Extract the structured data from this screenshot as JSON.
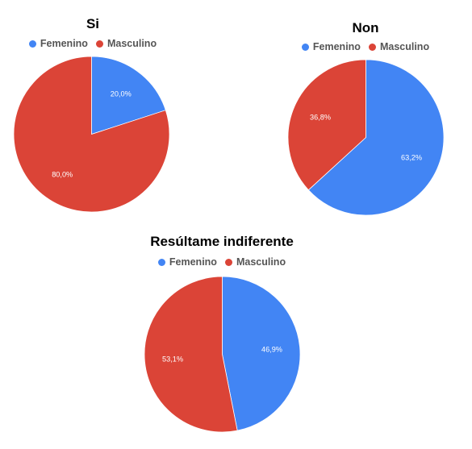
{
  "colors": {
    "femenino": "#4285f4",
    "masculino": "#db4437"
  },
  "chart_data": [
    {
      "type": "pie",
      "title": "Si",
      "legend": [
        "Femenino",
        "Masculino"
      ],
      "legend_position": "top",
      "slices": [
        {
          "label": "Femenino",
          "value": 20.0,
          "display": "20,0%"
        },
        {
          "label": "Masculino",
          "value": 80.0,
          "display": "80,0%"
        }
      ]
    },
    {
      "type": "pie",
      "title": "Non",
      "legend": [
        "Femenino",
        "Masculino"
      ],
      "legend_position": "top",
      "slices": [
        {
          "label": "Femenino",
          "value": 63.2,
          "display": "63,2%"
        },
        {
          "label": "Masculino",
          "value": 36.8,
          "display": "36,8%"
        }
      ]
    },
    {
      "type": "pie",
      "title": "Resúltame indiferente",
      "legend": [
        "Femenino",
        "Masculino"
      ],
      "legend_position": "top",
      "slices": [
        {
          "label": "Femenino",
          "value": 46.9,
          "display": "46,9%"
        },
        {
          "label": "Masculino",
          "value": 53.1,
          "display": "53,1%"
        }
      ]
    }
  ]
}
